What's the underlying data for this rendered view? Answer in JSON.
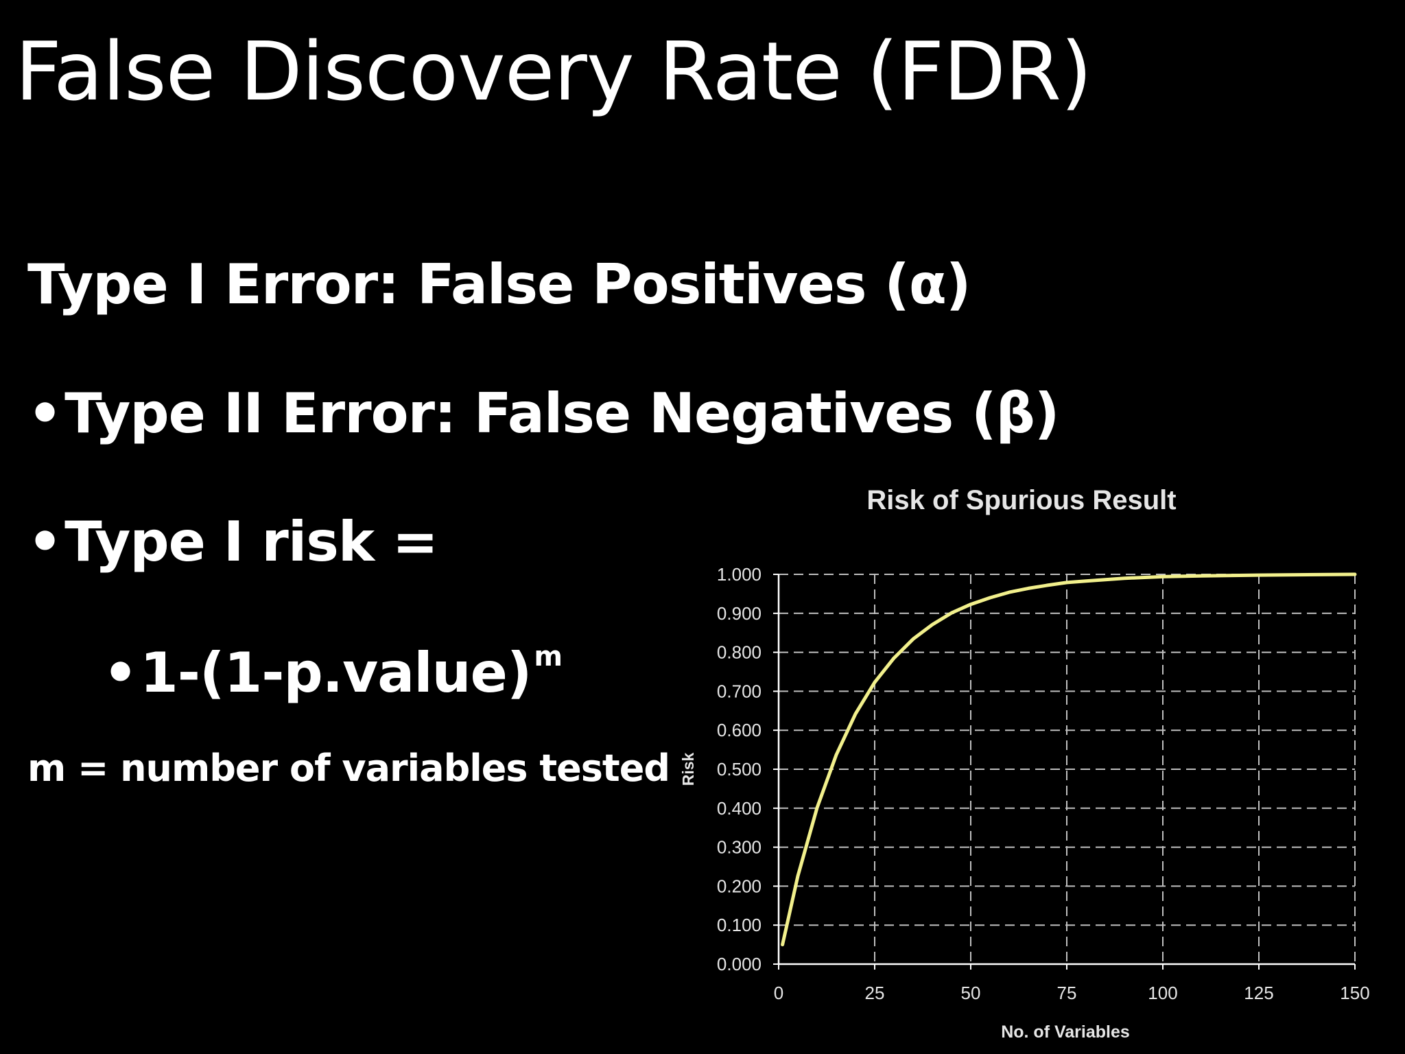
{
  "slide": {
    "title": "False Discovery Rate (FDR)",
    "bullet_char": "•",
    "line1": "Type I Error: False Positives (α)",
    "line2": "Type II Error: False Negatives (β)",
    "line3": "Type I risk =",
    "line4_base": "1-(1-p.value)",
    "line4_exp": "m",
    "line5": "m = number of variables tested"
  },
  "chart_data": {
    "type": "line",
    "title": "Risk of Spurious Result",
    "xlabel": "No. of Variables",
    "ylabel": "Risk",
    "xlim": [
      0,
      150
    ],
    "ylim": [
      0,
      1
    ],
    "xticks": [
      "0",
      "25",
      "50",
      "75",
      "100",
      "125",
      "150"
    ],
    "yticks": [
      "0.000",
      "0.100",
      "0.200",
      "0.300",
      "0.400",
      "0.500",
      "0.600",
      "0.700",
      "0.800",
      "0.900",
      "1.000"
    ],
    "grid": true,
    "legend": "none",
    "series": [
      {
        "color": "#f2f08c",
        "x": [
          1,
          5,
          10,
          15,
          20,
          25,
          30,
          35,
          40,
          45,
          50,
          55,
          60,
          65,
          70,
          75,
          80,
          90,
          100,
          110,
          125,
          150
        ],
        "y": [
          0.05,
          0.226,
          0.401,
          0.537,
          0.642,
          0.723,
          0.785,
          0.834,
          0.871,
          0.901,
          0.923,
          0.94,
          0.954,
          0.964,
          0.972,
          0.979,
          0.983,
          0.99,
          0.994,
          0.996,
          0.998,
          1.0
        ]
      }
    ],
    "colors": {
      "axis": "#ffffff",
      "grid": "#bfbfbf",
      "text": "#e6e6e6"
    }
  }
}
